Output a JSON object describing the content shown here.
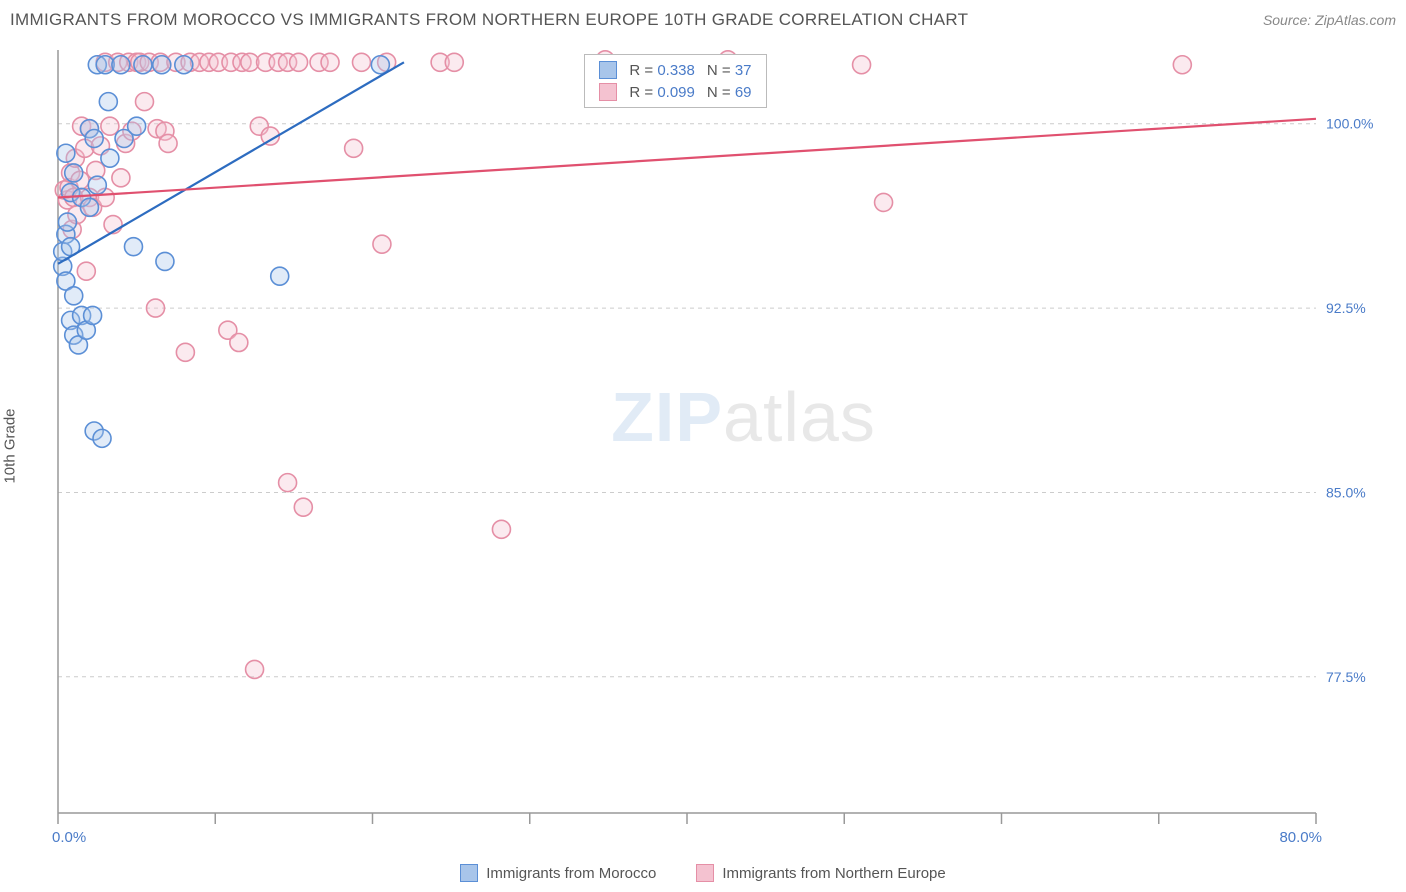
{
  "title": "IMMIGRANTS FROM MOROCCO VS IMMIGRANTS FROM NORTHERN EUROPE 10TH GRADE CORRELATION CHART",
  "source": "Source: ZipAtlas.com",
  "y_axis_label": "10th Grade",
  "watermark": {
    "part1": "ZIP",
    "part2": "atlas"
  },
  "chart": {
    "type": "scatter",
    "background_color": "#ffffff",
    "grid_color": "#cccccc",
    "axis_color": "#999999",
    "xlim": [
      0,
      80
    ],
    "ylim": [
      72,
      103
    ],
    "x_ticks": [
      0,
      10,
      20,
      30,
      40,
      50,
      60,
      70,
      80
    ],
    "x_tick_labels": {
      "first": "0.0%",
      "last": "80.0%"
    },
    "y_ticks": [
      77.5,
      85.0,
      92.5,
      100.0
    ],
    "y_tick_labels": [
      "77.5%",
      "85.0%",
      "92.5%",
      "100.0%"
    ],
    "marker_radius": 9,
    "marker_fill_opacity": 0.35,
    "marker_stroke_width": 1.6,
    "line_width": 2.2
  },
  "series": [
    {
      "name": "Immigrants from Morocco",
      "color_stroke": "#5b8fd6",
      "color_fill": "#a8c5ea",
      "line_color": "#2d6cc0",
      "R": "0.338",
      "N": "37",
      "trend": {
        "x1": 0,
        "y1": 94.3,
        "x2": 22,
        "y2": 102.5
      },
      "points": [
        [
          0.3,
          94.2
        ],
        [
          0.3,
          94.8
        ],
        [
          0.5,
          93.6
        ],
        [
          0.5,
          95.5
        ],
        [
          0.6,
          96.0
        ],
        [
          0.8,
          95.0
        ],
        [
          0.8,
          97.2
        ],
        [
          0.8,
          92.0
        ],
        [
          0.5,
          98.8
        ],
        [
          1.0,
          91.4
        ],
        [
          1.0,
          93.0
        ],
        [
          1.0,
          98.0
        ],
        [
          1.3,
          91.0
        ],
        [
          1.5,
          92.2
        ],
        [
          1.5,
          97.0
        ],
        [
          1.8,
          91.6
        ],
        [
          2.0,
          99.8
        ],
        [
          2.0,
          96.6
        ],
        [
          2.2,
          92.2
        ],
        [
          2.3,
          99.4
        ],
        [
          2.5,
          102.4
        ],
        [
          2.5,
          97.5
        ],
        [
          2.3,
          87.5
        ],
        [
          2.8,
          87.2
        ],
        [
          3.0,
          102.4
        ],
        [
          3.2,
          100.9
        ],
        [
          3.3,
          98.6
        ],
        [
          4.0,
          102.4
        ],
        [
          4.2,
          99.4
        ],
        [
          4.8,
          95.0
        ],
        [
          5.0,
          99.9
        ],
        [
          5.4,
          102.4
        ],
        [
          6.6,
          102.4
        ],
        [
          6.8,
          94.4
        ],
        [
          8.0,
          102.4
        ],
        [
          14.1,
          93.8
        ],
        [
          20.5,
          102.4
        ]
      ]
    },
    {
      "name": "Immigrants from Northern Europe",
      "color_stroke": "#e58fa6",
      "color_fill": "#f4c2d0",
      "line_color": "#e0506f",
      "R": "0.099",
      "N": "69",
      "trend": {
        "x1": 0,
        "y1": 97.0,
        "x2": 80,
        "y2": 100.2
      },
      "points": [
        [
          0.4,
          97.3
        ],
        [
          0.6,
          96.9
        ],
        [
          0.7,
          97.4
        ],
        [
          0.8,
          98.0
        ],
        [
          0.9,
          95.7
        ],
        [
          1.0,
          97.0
        ],
        [
          1.1,
          98.6
        ],
        [
          1.2,
          96.3
        ],
        [
          1.4,
          97.7
        ],
        [
          1.5,
          99.9
        ],
        [
          1.7,
          99.0
        ],
        [
          1.8,
          94.0
        ],
        [
          2.0,
          97.0
        ],
        [
          2.0,
          99.8
        ],
        [
          2.2,
          96.6
        ],
        [
          2.4,
          98.1
        ],
        [
          2.7,
          99.1
        ],
        [
          3.0,
          97.0
        ],
        [
          3.0,
          102.5
        ],
        [
          3.3,
          99.9
        ],
        [
          3.5,
          95.9
        ],
        [
          3.8,
          102.5
        ],
        [
          4.0,
          97.8
        ],
        [
          4.3,
          99.2
        ],
        [
          4.5,
          102.5
        ],
        [
          4.7,
          99.7
        ],
        [
          5.0,
          102.5
        ],
        [
          5.2,
          102.5
        ],
        [
          5.5,
          100.9
        ],
        [
          5.8,
          102.5
        ],
        [
          6.2,
          92.5
        ],
        [
          6.3,
          99.8
        ],
        [
          6.5,
          102.5
        ],
        [
          6.8,
          99.7
        ],
        [
          7.0,
          99.2
        ],
        [
          7.5,
          102.5
        ],
        [
          8.1,
          90.7
        ],
        [
          8.4,
          102.5
        ],
        [
          9.0,
          102.5
        ],
        [
          9.6,
          102.5
        ],
        [
          10.2,
          102.5
        ],
        [
          10.8,
          91.6
        ],
        [
          11.0,
          102.5
        ],
        [
          11.5,
          91.1
        ],
        [
          11.7,
          102.5
        ],
        [
          12.2,
          102.5
        ],
        [
          12.5,
          77.8
        ],
        [
          12.8,
          99.9
        ],
        [
          13.2,
          102.5
        ],
        [
          13.5,
          99.5
        ],
        [
          14.0,
          102.5
        ],
        [
          14.6,
          102.5
        ],
        [
          14.6,
          85.4
        ],
        [
          15.3,
          102.5
        ],
        [
          15.6,
          84.4
        ],
        [
          16.6,
          102.5
        ],
        [
          17.3,
          102.5
        ],
        [
          18.8,
          99.0
        ],
        [
          19.3,
          102.5
        ],
        [
          20.6,
          95.1
        ],
        [
          20.9,
          102.5
        ],
        [
          24.3,
          102.5
        ],
        [
          25.2,
          102.5
        ],
        [
          28.2,
          83.5
        ],
        [
          34.8,
          102.6
        ],
        [
          42.6,
          102.6
        ],
        [
          51.1,
          102.4
        ],
        [
          52.5,
          96.8
        ],
        [
          71.5,
          102.4
        ]
      ]
    }
  ],
  "legend_labels": {
    "r_prefix": "R =",
    "n_prefix": "N ="
  },
  "bottom_legend": [
    {
      "label": "Immigrants from Morocco",
      "stroke": "#5b8fd6",
      "fill": "#a8c5ea"
    },
    {
      "label": "Immigrants from Northern Europe",
      "stroke": "#e58fa6",
      "fill": "#f4c2d0"
    }
  ]
}
